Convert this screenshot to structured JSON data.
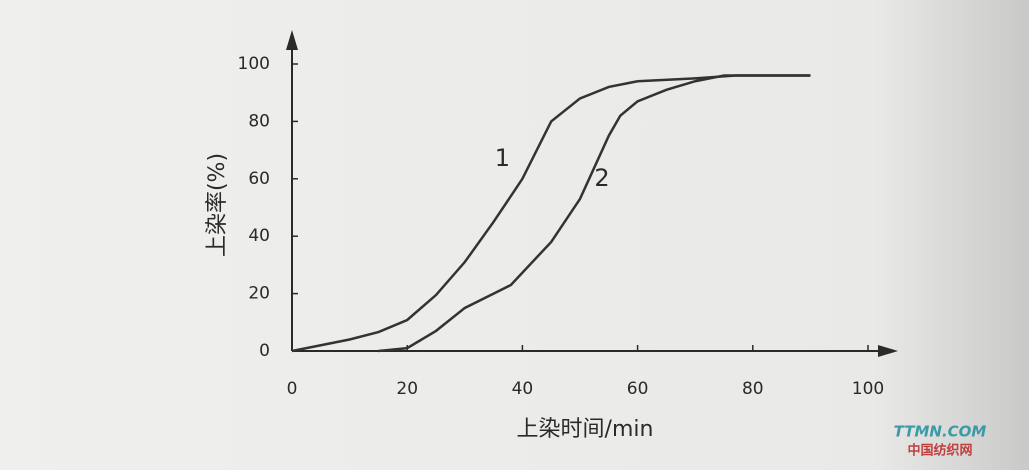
{
  "chart_data": {
    "type": "line",
    "xlabel": "上染时间/min",
    "ylabel": "上染率(%)",
    "xlim": [
      0,
      100
    ],
    "xticks": [
      0,
      20,
      40,
      60,
      80,
      100
    ],
    "ylim": [
      0,
      100
    ],
    "yticks": [
      0,
      20,
      40,
      60,
      80,
      100
    ],
    "series": [
      {
        "name": "1",
        "color": "#333333",
        "x": [
          0,
          10,
          15,
          20,
          25,
          30,
          35,
          40,
          45,
          50,
          55,
          60,
          70,
          77,
          90
        ],
        "values": [
          0,
          4,
          6.6,
          10.8,
          19.5,
          31,
          45,
          60,
          80,
          88,
          92,
          94,
          95,
          96,
          96
        ]
      },
      {
        "name": "2",
        "color": "#333333",
        "x": [
          15,
          20,
          25,
          30,
          35,
          38,
          45,
          50,
          55,
          57,
          60,
          65,
          70,
          75,
          90
        ],
        "values": [
          0,
          1,
          7,
          15,
          20,
          23,
          38,
          53,
          75,
          82,
          87,
          91,
          94,
          96,
          96
        ]
      }
    ],
    "annotations": [
      "TTMN.COM",
      "中国纺织网"
    ]
  }
}
